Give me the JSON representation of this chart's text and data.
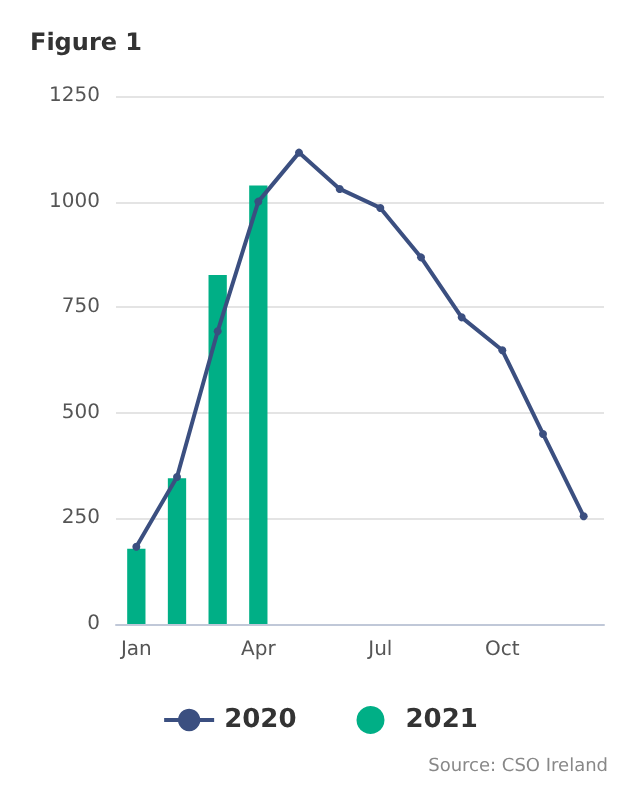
{
  "chart_data": {
    "type": "bar",
    "title": "Figure 1",
    "annotations": [
      "Source: CSO Ireland"
    ],
    "categories": [
      "Jan",
      null,
      null,
      "Apr",
      null,
      null,
      "Jul",
      null,
      null,
      "Oct",
      null,
      null
    ],
    "series": [
      {
        "name": "2020",
        "type": "line",
        "color": "#3b4f80",
        "values": [
          183,
          348,
          693,
          1000,
          1116,
          1030,
          985,
          868,
          726,
          648,
          450,
          255
        ]
      },
      {
        "name": "2021",
        "color": "#00af86",
        "values": [
          178,
          345,
          826,
          1038,
          null,
          null,
          null,
          null,
          null,
          null,
          null,
          null
        ]
      }
    ],
    "ylim": [
      0,
      1250
    ],
    "yticks": [
      0,
      250,
      500,
      750,
      1000,
      1250
    ],
    "grid": "y",
    "legend": "bottom",
    "marker": "circle",
    "line_style": "solid"
  }
}
